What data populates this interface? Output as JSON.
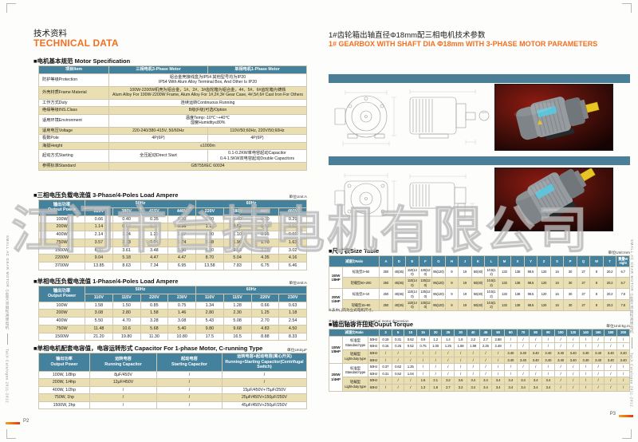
{
  "watermark": "江门市台捷电机有限公司",
  "colors": {
    "accent_orange": "#f26f21",
    "header_teal": "#44819c",
    "banner_teal": "#4a7f97",
    "row_tan": "#e9dfb2",
    "photo_red": "#7d150e"
  },
  "sidebar": {
    "series": "SMALL AC GEAR MOTOR  小型交流齿轮减速电机",
    "catalog": "TaiJi Catalogue 2011-2012"
  },
  "footer": {
    "left_page_no": "P2",
    "right_page_no": "P3"
  },
  "left_page": {
    "title_cn": "技术资料",
    "title_en": "TECHNICAL DATA",
    "spec": {
      "heading": "■电机基本规范 Motor Specification",
      "header": [
        "项目Item",
        "三相电机3-Phase Motor",
        "单相电机1-Phase Motor"
      ],
      "rows": [
        {
          "label": "防护等级Protection",
          "value": "铝合金壳接线盒为IP54 其他型号均为IP20\nIP54 With Alum Alloy Terminal Box, And Other Is IP20"
        },
        {
          "label": "外壳材质Frame Material",
          "value": "100W-2200W机壳为铝合金，1#、2#、3#齿轮箱为铝合金，4#、5#、6#齿轮箱为铸铁\nAlum Alloy For 100W-2200W Frame, Alum Alloy For 1#,2#,3# Gear Case, 4#,5#,6# Cast Iron For Others"
        },
        {
          "label": "工作方式Duty",
          "value": "连续运转Continuous Running"
        },
        {
          "label": "绝缘等级INS.Class",
          "value": "B级(F级)可选/Option"
        },
        {
          "label": "适用环境Environment",
          "value": "温度Temp:-10℃~+40℃\n湿度Humidity≤80%"
        },
        {
          "label": "适用电压Voltage",
          "three": "220-240/380-415V, 50/60Hz",
          "single": "110V/50;60Hz, 220V/50;60Hz"
        },
        {
          "label": "极数Pole",
          "three": "4P(6P)",
          "single": "4P(6P)"
        },
        {
          "label": "海拔Height",
          "value": "≤1000m"
        },
        {
          "label": "起动方式Starting",
          "three": "全压起动Direct Start",
          "single": "0.1-0.2KW单电容起动Capacitor\n0.4-1.5KW双电容起动Double Capacitors"
        },
        {
          "label": "参照标准Standard",
          "value": "GB755/IEC 60034"
        }
      ]
    },
    "three_phase": {
      "heading": "■三相电压负载电流值 3-Phase/4-Poles Load Ampere",
      "unit": "单位Unit:A",
      "power_label": "输出功率\nOutput Power",
      "freqs": [
        "50Hz",
        "60Hz"
      ],
      "voltages": [
        "220V",
        "380V",
        "415V",
        "440V",
        "220V",
        "380V",
        "440V",
        "460V"
      ],
      "rows": [
        {
          "power": "100W",
          "values": [
            "0.66",
            "0.40",
            "0.35",
            "0.30",
            "0.60",
            "0.40",
            "0.30",
            "0.29"
          ]
        },
        {
          "power": "200W",
          "values": [
            "1.14",
            "0.67",
            "0.70",
            "0.56",
            "1.12",
            "0.62",
            "0.57",
            "0.52"
          ]
        },
        {
          "power": "400W",
          "values": [
            "2.14",
            "1.24",
            "1.21",
            "1.07",
            "1.90",
            "1.10",
            "0.95",
            "0.91"
          ]
        },
        {
          "power": "750W",
          "values": [
            "3.57",
            "2.13",
            "1.94",
            "1.74",
            "3.48",
            "1.96",
            "1.70",
            "1.63"
          ]
        },
        {
          "power": "1500W",
          "values": [
            "6.30",
            "3.61",
            "3.48",
            "3.30",
            "6.10",
            "3.53",
            "3.05",
            "3.02"
          ]
        },
        {
          "power": "2200W",
          "values": [
            "9.04",
            "5.18",
            "4.47",
            "4.47",
            "8.70",
            "5.04",
            "4.35",
            "4.16"
          ]
        },
        {
          "power": "3700W",
          "values": [
            "13.85",
            "8.63",
            "7.34",
            "6.95",
            "13.58",
            "7.83",
            "6.75",
            "6.46"
          ]
        }
      ]
    },
    "one_phase": {
      "heading": "■单相电压负载电流值 1-Phase/4-Poles Load Ampere",
      "unit": "单位Unit:A",
      "power_label": "输出功率\nOutput Power",
      "freqs": [
        "50Hz",
        "60Hz"
      ],
      "voltages": [
        "110V",
        "115V",
        "220V",
        "230V",
        "110V",
        "115V",
        "220V",
        "230V"
      ],
      "rows": [
        {
          "power": "100W",
          "values": [
            "1.58",
            "1.50",
            "0.85",
            "0.75",
            "1.34",
            "1.28",
            "0.66",
            "0.63"
          ]
        },
        {
          "power": "200W",
          "values": [
            "3.08",
            "2.80",
            "1.58",
            "1.46",
            "2.80",
            "2.30",
            "1.25",
            "1.18"
          ]
        },
        {
          "power": "400W",
          "values": [
            "5.50",
            "4.70",
            "3.28",
            "3.08",
            "5.43",
            "5.08",
            "2.70",
            "2.54"
          ]
        },
        {
          "power": "750W",
          "values": [
            "11.48",
            "10.6",
            "5.68",
            "5.40",
            "9.80",
            "9.68",
            "4.83",
            "4.50"
          ]
        },
        {
          "power": "1500W",
          "values": [
            "21.20",
            "19.80",
            "11.30",
            "10.80",
            "17.5",
            "16.5",
            "8.88",
            "8.33"
          ]
        }
      ]
    },
    "capacitor": {
      "heading": "■单相电机配套电容值，电容运转形式 Capacitor For 1-phase Motor, C-running Type",
      "unit": "单位Unit:μF",
      "header": [
        "输出功率\nOutput Power",
        "运转电容\nRunning Capacitor",
        "起动电容\nStarting Capacitor",
        "运转电容+起动电容(离心开关)\nRunning+Starting Capacitor(Centrifugal Switch)"
      ],
      "rows": [
        [
          "100W, 1/8hp",
          "8μF/450V",
          "/",
          "/"
        ],
        [
          "200W, 1/4hp",
          "12μF/450V",
          "/",
          "/"
        ],
        [
          "400W, 1/2hp",
          "/",
          "/",
          "15μF/450V+75μF/250V"
        ],
        [
          "750W, 1hp",
          "/",
          "/",
          "25μF/450V+150μF/250V"
        ],
        [
          "1500W, 2hp",
          "/",
          "/",
          "45μF/450V+250μF/250V"
        ]
      ]
    }
  },
  "right_page": {
    "title_cn": "1#齿轮箱出轴直径Φ18mm配三相电机技术参数",
    "title_en": "1# GEARBOX WITH SHAFT DIA Φ18mm WITH 3-PHASE MOTOR PARAMETERS",
    "size_table": {
      "heading": "■尺寸表Size Table",
      "unit": "单位Unit:mm",
      "columns": [
        "减速比Ratio",
        "A",
        "D",
        "E",
        "F",
        "G",
        "H",
        "J",
        "K",
        "L",
        "M",
        "X",
        "Y",
        "Z",
        "S",
        "P",
        "Q",
        "W",
        "T",
        "重量Weight"
      ],
      "groups": [
        {
          "label": "100W\n1/8HP",
          "rows": [
            {
              "type": "标准型3~50",
              "values": [
                "250",
                "40(36)",
                "110(140)",
                "135(120)",
                "95(120)",
                "9",
                "19",
                "50(40)",
                "10.5(12)",
                "133",
                "138",
                "98.5",
                "120",
                "16",
                "30",
                "27",
                "8",
                "20.2",
                "6.7"
              ]
            },
            {
              "type": "轻载型60~200",
              "values": [
                "250",
                "40(36)",
                "110(140)",
                "135(120)",
                "95(120)",
                "9",
                "19",
                "50(40)",
                "10.5(12)",
                "133",
                "138",
                "98.5",
                "120",
                "16",
                "30",
                "27",
                "8",
                "20.2",
                "6.7"
              ]
            }
          ]
        },
        {
          "label": "200W\n1/4HP",
          "rows": [
            {
              "type": "标准型3~10",
              "values": [
                "250",
                "40(36)",
                "110(140)",
                "135(120)",
                "95(120)",
                "9",
                "19",
                "50(40)",
                "10.5(12)",
                "133",
                "138",
                "98.5",
                "120",
                "16",
                "30",
                "27",
                "8",
                "20.2",
                "7.8"
              ]
            },
            {
              "type": "轻载型15~90",
              "values": [
                "250",
                "40(36)",
                "110(140)",
                "135(120)",
                "95(120)",
                "9",
                "19",
                "50(40)",
                "10.5(12)",
                "133",
                "138",
                "98.5",
                "120",
                "16",
                "30",
                "27",
                "8",
                "20.2",
                "7.8"
              ]
            }
          ]
        }
      ]
    },
    "note_cn": "※表中( )内为立式电机尺寸。",
    "note_en": "※Tabulation \"( )\" denote Vertical motor dimension",
    "torque": {
      "heading": "■输出轴容许扭矩Ouput Torque",
      "unit": "单位Unit:kg.m",
      "corner": "减速比Ratio",
      "ratios": [
        "3",
        "5",
        "10",
        "15",
        "20",
        "25",
        "30",
        "40",
        "45",
        "50",
        "60",
        "70",
        "80",
        "90",
        "100",
        "120",
        "140",
        "160",
        "180",
        "200"
      ],
      "groups": [
        {
          "label": "100W\n1/8HP",
          "types": [
            {
              "type": "标准型\nStandard type",
              "rows": [
                {
                  "hz": "50Hz",
                  "values": [
                    "0.19",
                    "0.31",
                    "0.62",
                    "0.9",
                    "1.2",
                    "1.4",
                    "1.8",
                    "2.2",
                    "2.7",
                    "2.88",
                    "/",
                    "/",
                    "/",
                    "/",
                    "/",
                    "/",
                    "/",
                    "/",
                    "/",
                    "/"
                  ]
                },
                {
                  "hz": "60Hz",
                  "values": [
                    "0.16",
                    "0.25",
                    "0.52",
                    "0.75",
                    "1.00",
                    "1.25",
                    "1.58",
                    "1.98",
                    "2.25",
                    "2.48",
                    "/",
                    "/",
                    "/",
                    "/",
                    "/",
                    "/",
                    "/",
                    "/",
                    "/",
                    "/"
                  ]
                }
              ]
            },
            {
              "type": "轻载型\nLight-duty type",
              "rows": [
                {
                  "hz": "50Hz",
                  "values": [
                    "/",
                    "/",
                    "/",
                    "/",
                    "/",
                    "/",
                    "/",
                    "/",
                    "/",
                    "/",
                    "3.40",
                    "3.40",
                    "3.40",
                    "3.40",
                    "3.40",
                    "3.40",
                    "3.40",
                    "3.40",
                    "3.40",
                    "3.40"
                  ]
                },
                {
                  "hz": "60Hz",
                  "values": [
                    "/",
                    "/",
                    "/",
                    "/",
                    "/",
                    "/",
                    "/",
                    "/",
                    "/",
                    "/",
                    "3.40",
                    "3.40",
                    "3.40",
                    "3.40",
                    "3.40",
                    "3.40",
                    "3.40",
                    "3.40",
                    "3.40",
                    "3.40"
                  ]
                }
              ]
            }
          ]
        },
        {
          "label": "200W\n1/4HP",
          "types": [
            {
              "type": "标准型\nStandard type",
              "rows": [
                {
                  "hz": "50Hz",
                  "values": [
                    "0.37",
                    "0.62",
                    "1.25",
                    "/",
                    "/",
                    "/",
                    "/",
                    "/",
                    "/",
                    "/",
                    "/",
                    "/",
                    "/",
                    "/",
                    "/",
                    "/",
                    "/",
                    "/",
                    "/",
                    "/"
                  ]
                },
                {
                  "hz": "60Hz",
                  "values": [
                    "0.31",
                    "0.52",
                    "1.04",
                    "/",
                    "/",
                    "/",
                    "/",
                    "/",
                    "/",
                    "/",
                    "/",
                    "/",
                    "/",
                    "/",
                    "/",
                    "/",
                    "/",
                    "/",
                    "/",
                    "/"
                  ]
                }
              ]
            },
            {
              "type": "轻载型\nLight-duty type",
              "rows": [
                {
                  "hz": "50Hz",
                  "values": [
                    "/",
                    "/",
                    "/",
                    "1.6",
                    "2.1",
                    "3.2",
                    "3.6",
                    "3.4",
                    "3.4",
                    "3.4",
                    "3.4",
                    "3.4",
                    "3.4",
                    "3.4",
                    "/",
                    "/",
                    "/",
                    "/",
                    "/",
                    "/"
                  ]
                },
                {
                  "hz": "60Hz",
                  "values": [
                    "/",
                    "/",
                    "/",
                    "1.3",
                    "1.8",
                    "2.7",
                    "3.2",
                    "3.4",
                    "3.4",
                    "3.4",
                    "3.4",
                    "3.4",
                    "3.4",
                    "3.4",
                    "/",
                    "/",
                    "/",
                    "/",
                    "/",
                    "/"
                  ]
                }
              ]
            }
          ]
        }
      ]
    }
  }
}
